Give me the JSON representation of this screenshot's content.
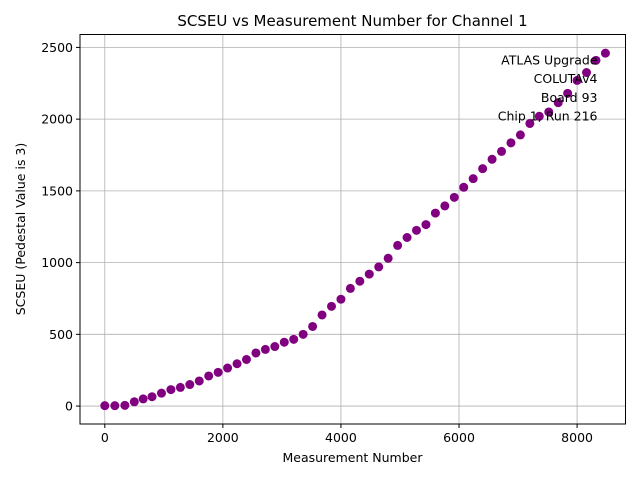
{
  "chart_data": {
    "type": "scatter",
    "title": "SCSEU vs Measurement Number for Channel 1",
    "xlabel": "Measurement Number",
    "ylabel": "SCSEU (Pedestal Value is 3)",
    "xlim": [
      -420,
      8820
    ],
    "ylim": [
      -125,
      2590
    ],
    "xticks": [
      0,
      2000,
      4000,
      6000,
      8000
    ],
    "xtick_labels": [
      "0",
      "2000",
      "4000",
      "6000",
      "8000"
    ],
    "yticks": [
      0,
      500,
      1000,
      1500,
      2000,
      2500
    ],
    "ytick_labels": [
      "0",
      "500",
      "1000",
      "1500",
      "2000",
      "2500"
    ],
    "grid": true,
    "marker_color": "#800080",
    "annotation": [
      "ATLAS Upgrade",
      "COLUTAv4",
      "Board 93",
      "Chip 1, Run 216"
    ],
    "annotation_placement": "top-right",
    "series": [
      {
        "x": [
          0,
          170,
          340,
          500,
          650,
          800,
          960,
          1120,
          1280,
          1440,
          1600,
          1760,
          1920,
          2080,
          2240,
          2400,
          2560,
          2720,
          2880,
          3040,
          3200,
          3360,
          3520,
          3680,
          3840,
          4000,
          4160,
          4320,
          4480,
          4640,
          4800,
          4960,
          5120,
          5280,
          5440,
          5600,
          5760,
          5920,
          6080,
          6240,
          6400,
          6560,
          6720,
          6880,
          7040,
          7200,
          7360,
          7520,
          7680,
          7840,
          8000,
          8160,
          8320,
          8480
        ],
        "y": [
          3,
          3,
          5,
          30,
          50,
          65,
          90,
          115,
          130,
          150,
          175,
          210,
          235,
          265,
          295,
          325,
          370,
          395,
          415,
          445,
          465,
          500,
          555,
          635,
          695,
          745,
          820,
          870,
          920,
          970,
          1030,
          1120,
          1175,
          1225,
          1265,
          1345,
          1395,
          1455,
          1525,
          1585,
          1655,
          1720,
          1775,
          1835,
          1890,
          1970,
          2020,
          2050,
          2115,
          2180,
          2270,
          2325,
          2410,
          2460
        ]
      }
    ]
  }
}
